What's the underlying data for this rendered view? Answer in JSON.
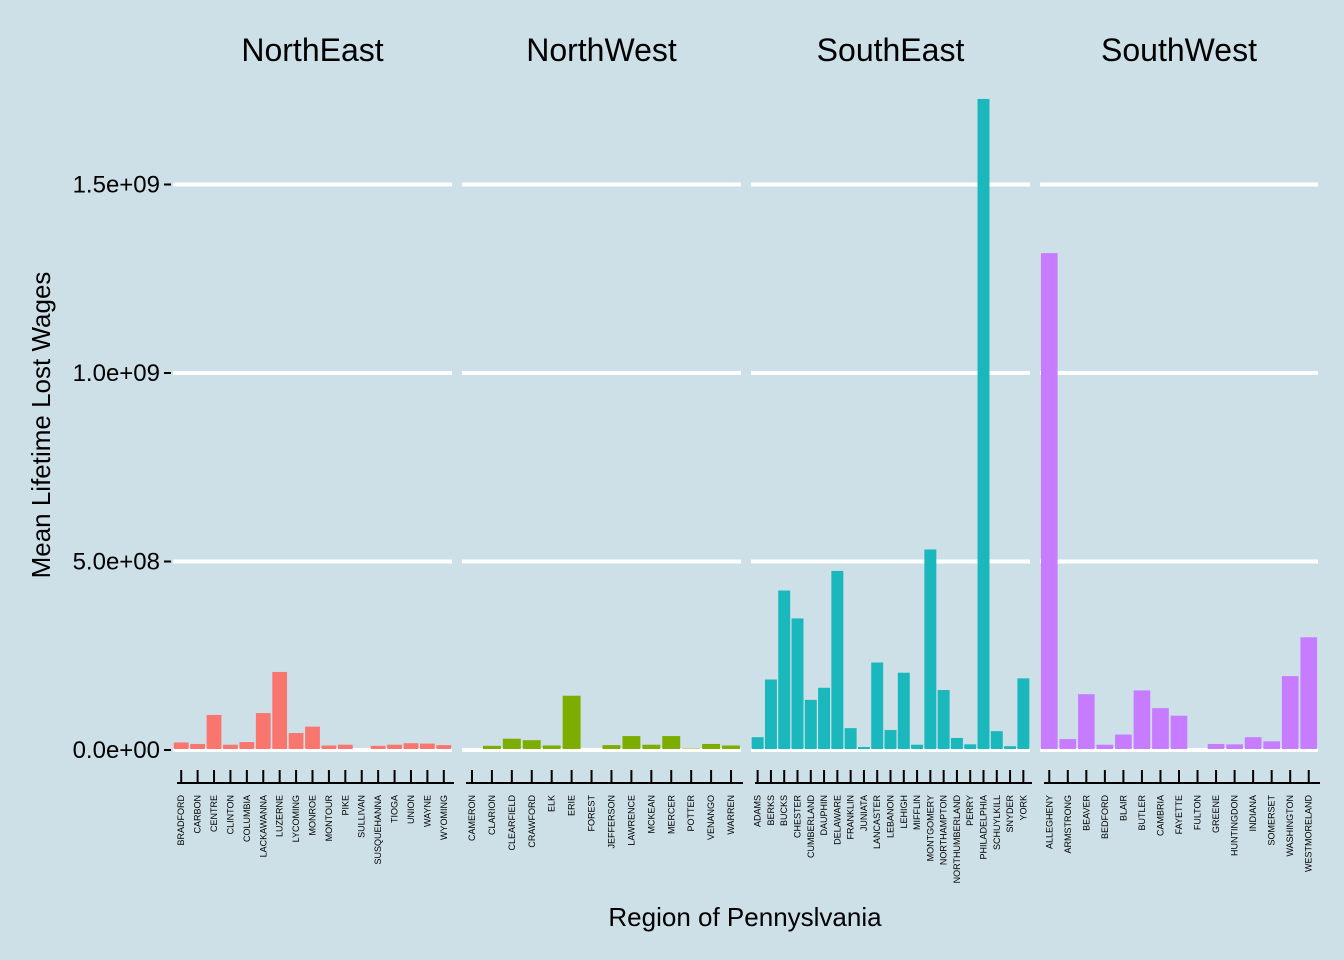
{
  "chart_data": {
    "type": "bar",
    "xlabel": "Region of Pennyslvania",
    "ylabel": "Mean Lifetime Lost Wages",
    "ylim": [
      0,
      1750000000
    ],
    "yticks": [
      0,
      500000000,
      1000000000,
      1500000000
    ],
    "ytick_labels": [
      "0.0e+00",
      "5.0e+08",
      "1.0e+09",
      "1.5e+09"
    ],
    "grid": "horizontal major lines, white",
    "legend": "none",
    "background": "#cde0e8",
    "panels": [
      {
        "name": "NorthEast",
        "color": "#f8766d",
        "categories": [
          "BRADFORD",
          "CARBON",
          "CENTRE",
          "CLINTON",
          "COLUMBIA",
          "LACKAWANNA",
          "LUZERNE",
          "LYCOMING",
          "MONROE",
          "MONTOUR",
          "PIKE",
          "SULLIVAN",
          "SUSQUEHANNA",
          "TIOGA",
          "UNION",
          "WAYNE",
          "WYOMING"
        ],
        "values": [
          20000000,
          16000000,
          93000000,
          14000000,
          21000000,
          98000000,
          207000000,
          45000000,
          62000000,
          12000000,
          14000000,
          0,
          11000000,
          14000000,
          18000000,
          17000000,
          13000000
        ]
      },
      {
        "name": "NorthWest",
        "color": "#7cae00",
        "categories": [
          "CAMERON",
          "CLARION",
          "CLEARFIELD",
          "CRAWFORD",
          "ELK",
          "ERIE",
          "FOREST",
          "JEFFERSON",
          "LAWRENCE",
          "MCKEAN",
          "MERCER",
          "POTTER",
          "VENANGO",
          "WARREN"
        ],
        "values": [
          0,
          11000000,
          30000000,
          26000000,
          12000000,
          144000000,
          0,
          13000000,
          37000000,
          14000000,
          37000000,
          4000000,
          16000000,
          12000000
        ]
      },
      {
        "name": "SouthEast",
        "color": "#1ab7bc",
        "categories": [
          "ADAMS",
          "BERKS",
          "BUCKS",
          "CHESTER",
          "CUMBERLAND",
          "DAUPHIN",
          "DELAWARE",
          "FRANKLIN",
          "JUNIATA",
          "LANCASTER",
          "LEBANON",
          "LEHIGH",
          "MIFFLIN",
          "MONTGOMERY",
          "NORTHAMPTON",
          "NORTHUMBERLAND",
          "PERRY",
          "PHILADELPHIA",
          "SCHUYLKILL",
          "SNYDER",
          "YORK"
        ],
        "values": [
          34000000,
          187000000,
          423000000,
          349000000,
          133000000,
          165000000,
          475000000,
          58000000,
          8000000,
          232000000,
          53000000,
          205000000,
          14000000,
          532000000,
          159000000,
          32000000,
          15000000,
          1727000000,
          50000000,
          10000000,
          190000000
        ]
      },
      {
        "name": "SouthWest",
        "color": "#c77cff",
        "categories": [
          "ALLEGHENY",
          "ARMSTRONG",
          "BEAVER",
          "BEDFORD",
          "BLAIR",
          "BUTLER",
          "CAMBRIA",
          "FAYETTE",
          "FULTON",
          "GREENE",
          "HUNTINGDON",
          "INDIANA",
          "SOMERSET",
          "WASHINGTON",
          "WESTMORELAND"
        ],
        "values": [
          1318000000,
          29000000,
          148000000,
          14000000,
          41000000,
          158000000,
          111000000,
          91000000,
          0,
          16000000,
          15000000,
          34000000,
          23000000,
          196000000,
          299000000
        ]
      }
    ]
  }
}
